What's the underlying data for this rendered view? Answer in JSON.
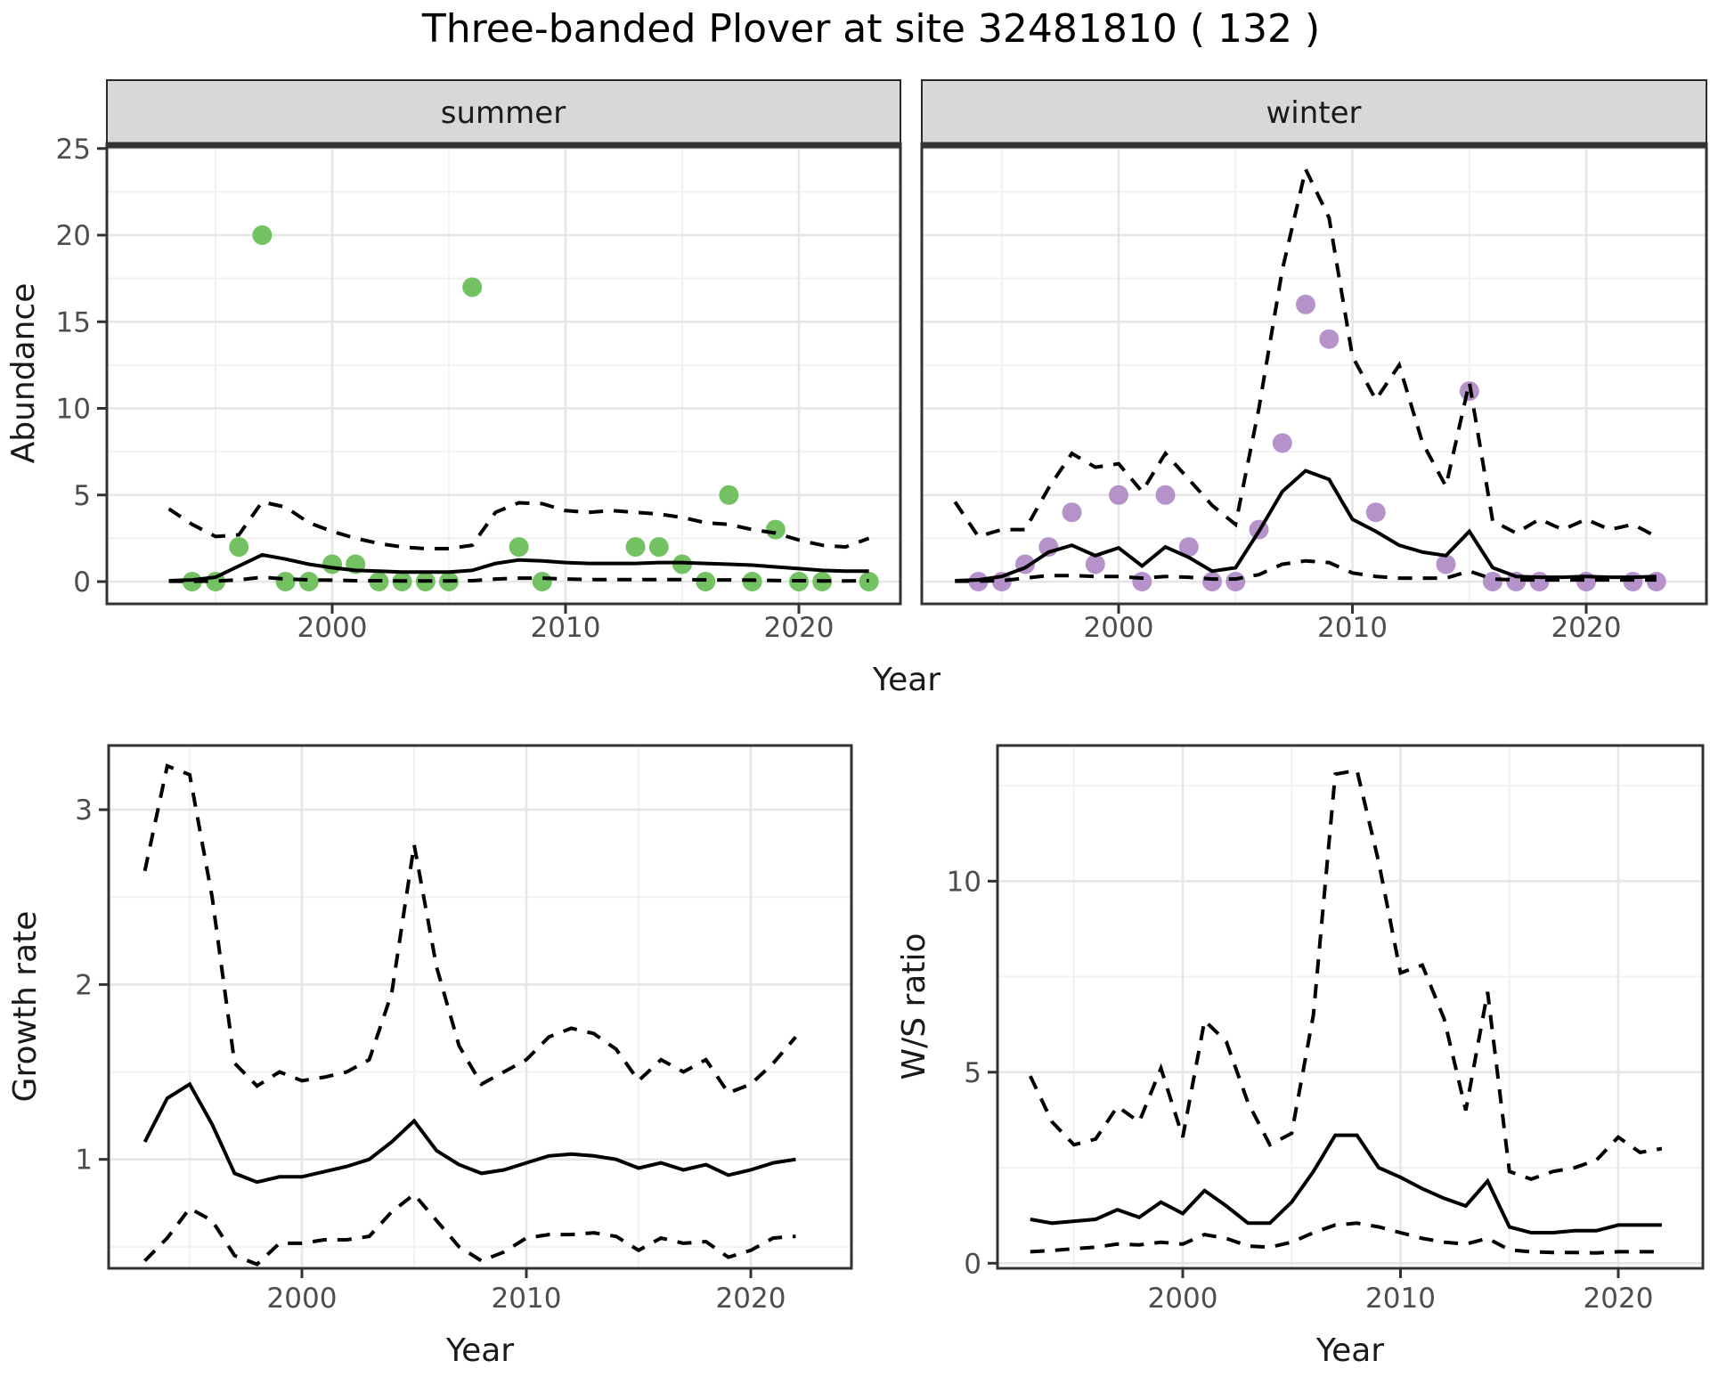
{
  "title": "Three-banded Plover at site 32481810 ( 132 )",
  "colors": {
    "summer_points": "#6cbe5b",
    "winter_points": "#b28cc8",
    "line": "#000000",
    "panel_border": "#333333",
    "strip_bg": "#d8d8d8",
    "grid_major": "#e6e6e6",
    "grid_minor": "#f2f2f2",
    "tick_label": "#4d4d4d"
  },
  "chart_data": [
    {
      "type": "scatter+line",
      "facet_label": "summer",
      "xlabel": "Year",
      "ylabel": "Abundance",
      "xticks": [
        2000,
        2010,
        2020
      ],
      "xminor": [
        1995,
        2005,
        2015
      ],
      "yticks": [
        0,
        5,
        10,
        15,
        20,
        25
      ],
      "yminor": [
        2.5,
        7.5,
        12.5,
        17.5,
        22.5
      ],
      "xlim": [
        1990.3,
        2024.4
      ],
      "ylim": [
        -1.3,
        25.3
      ],
      "grid": true,
      "legend_position": "none",
      "point_color": "#6cbe5b",
      "points": {
        "years": [
          1994,
          1995,
          1996,
          1997,
          1998,
          1999,
          2000,
          2001,
          2002,
          2003,
          2004,
          2005,
          2006,
          2008,
          2009,
          2013,
          2014,
          2015,
          2016,
          2017,
          2018,
          2019,
          2020,
          2021,
          2023
        ],
        "values": [
          0,
          0,
          2,
          20,
          0,
          0,
          1,
          1,
          0,
          0,
          0,
          0,
          17,
          2,
          0,
          2,
          2,
          1,
          0,
          5,
          0,
          3,
          0,
          0,
          0
        ]
      },
      "series": [
        {
          "name": "median_fit",
          "style": "solid",
          "years": [
            1993,
            1994,
            1995,
            1996,
            1997,
            1998,
            1999,
            2000,
            2001,
            2002,
            2003,
            2004,
            2005,
            2006,
            2007,
            2008,
            2009,
            2010,
            2011,
            2012,
            2013,
            2014,
            2015,
            2016,
            2017,
            2018,
            2019,
            2020,
            2021,
            2022,
            2023
          ],
          "values": [
            0.05,
            0.1,
            0.25,
            0.9,
            1.55,
            1.3,
            1.0,
            0.8,
            0.65,
            0.6,
            0.55,
            0.55,
            0.55,
            0.65,
            1.05,
            1.25,
            1.2,
            1.1,
            1.05,
            1.05,
            1.05,
            1.1,
            1.1,
            1.05,
            1.0,
            0.95,
            0.85,
            0.75,
            0.65,
            0.6,
            0.6
          ]
        },
        {
          "name": "upper_ci",
          "style": "dashed",
          "years": [
            1993,
            1994,
            1995,
            1996,
            1997,
            1998,
            1999,
            2000,
            2001,
            2002,
            2003,
            2004,
            2005,
            2006,
            2007,
            2008,
            2009,
            2010,
            2011,
            2012,
            2013,
            2014,
            2015,
            2016,
            2017,
            2018,
            2019,
            2020,
            2021,
            2022,
            2023
          ],
          "values": [
            4.2,
            3.3,
            2.6,
            2.7,
            4.6,
            4.3,
            3.4,
            2.9,
            2.5,
            2.2,
            2.0,
            1.9,
            1.9,
            2.1,
            4.0,
            4.55,
            4.5,
            4.1,
            4.0,
            4.1,
            4.0,
            3.9,
            3.7,
            3.4,
            3.3,
            3.0,
            2.8,
            2.4,
            2.1,
            2.0,
            2.5
          ]
        },
        {
          "name": "lower_ci",
          "style": "dashed",
          "years": [
            1993,
            1994,
            1995,
            1996,
            1997,
            1998,
            1999,
            2000,
            2001,
            2002,
            2003,
            2004,
            2005,
            2006,
            2007,
            2008,
            2009,
            2010,
            2011,
            2012,
            2013,
            2014,
            2015,
            2016,
            2017,
            2018,
            2019,
            2020,
            2021,
            2022,
            2023
          ],
          "values": [
            0.02,
            0.02,
            0.03,
            0.1,
            0.25,
            0.15,
            0.1,
            0.08,
            0.05,
            0.05,
            0.04,
            0.04,
            0.04,
            0.05,
            0.15,
            0.2,
            0.2,
            0.15,
            0.12,
            0.12,
            0.12,
            0.12,
            0.12,
            0.1,
            0.1,
            0.08,
            0.06,
            0.05,
            0.04,
            0.04,
            0.05
          ]
        }
      ]
    },
    {
      "type": "scatter+line",
      "facet_label": "winter",
      "xlabel": "Year",
      "ylabel": "Abundance",
      "xticks": [
        2000,
        2010,
        2020
      ],
      "xminor": [
        1995,
        2005,
        2015
      ],
      "yticks": [
        0,
        5,
        10,
        15,
        20,
        25
      ],
      "yminor": [
        2.5,
        7.5,
        12.5,
        17.5,
        22.5
      ],
      "xlim": [
        1991.3,
        2025.2
      ],
      "ylim": [
        -1.3,
        25.3
      ],
      "grid": true,
      "legend_position": "none",
      "point_color": "#b28cc8",
      "points": {
        "years": [
          1994,
          1995,
          1996,
          1997,
          1998,
          1999,
          2000,
          2001,
          2002,
          2003,
          2004,
          2005,
          2006,
          2007,
          2008,
          2009,
          2011,
          2014,
          2015,
          2016,
          2017,
          2018,
          2020,
          2022,
          2023
        ],
        "values": [
          0,
          0,
          1,
          2,
          4,
          1,
          5,
          0,
          5,
          2,
          0,
          0,
          3,
          8,
          16,
          14,
          4,
          1,
          11,
          0,
          0,
          0,
          0,
          0,
          0
        ]
      },
      "series": [
        {
          "name": "median_fit",
          "style": "solid",
          "years": [
            1993,
            1994,
            1995,
            1996,
            1997,
            1998,
            1999,
            2000,
            2001,
            2002,
            2003,
            2004,
            2005,
            2006,
            2007,
            2008,
            2009,
            2010,
            2011,
            2012,
            2013,
            2014,
            2015,
            2016,
            2017,
            2018,
            2019,
            2020,
            2021,
            2022,
            2023
          ],
          "values": [
            0.05,
            0.1,
            0.3,
            0.8,
            1.7,
            2.1,
            1.5,
            1.95,
            0.9,
            2.0,
            1.4,
            0.6,
            0.8,
            2.9,
            5.2,
            6.4,
            5.9,
            3.6,
            2.9,
            2.1,
            1.7,
            1.5,
            2.9,
            0.8,
            0.3,
            0.25,
            0.25,
            0.3,
            0.25,
            0.25,
            0.3
          ]
        },
        {
          "name": "upper_ci",
          "style": "dashed",
          "years": [
            1993,
            1994,
            1995,
            1996,
            1997,
            1998,
            1999,
            2000,
            2001,
            2002,
            2003,
            2004,
            2005,
            2006,
            2007,
            2008,
            2009,
            2010,
            2011,
            2012,
            2013,
            2014,
            2015,
            2016,
            2017,
            2018,
            2019,
            2020,
            2021,
            2022,
            2023
          ],
          "values": [
            4.6,
            2.6,
            3.0,
            3.0,
            5.4,
            7.4,
            6.6,
            6.8,
            5.2,
            7.4,
            5.9,
            4.4,
            3.3,
            10.0,
            18.0,
            23.8,
            21.0,
            13.0,
            10.5,
            12.5,
            8.0,
            5.5,
            11.5,
            3.5,
            2.8,
            3.6,
            3.0,
            3.6,
            3.0,
            3.3,
            2.6
          ]
        },
        {
          "name": "lower_ci",
          "style": "dashed",
          "years": [
            1993,
            1994,
            1995,
            1996,
            1997,
            1998,
            1999,
            2000,
            2001,
            2002,
            2003,
            2004,
            2005,
            2006,
            2007,
            2008,
            2009,
            2010,
            2011,
            2012,
            2013,
            2014,
            2015,
            2016,
            2017,
            2018,
            2019,
            2020,
            2021,
            2022,
            2023
          ],
          "values": [
            0.02,
            0.03,
            0.05,
            0.2,
            0.35,
            0.35,
            0.3,
            0.3,
            0.2,
            0.3,
            0.25,
            0.15,
            0.15,
            0.4,
            1.0,
            1.2,
            1.1,
            0.5,
            0.3,
            0.2,
            0.2,
            0.2,
            0.6,
            0.15,
            0.1,
            0.1,
            0.1,
            0.1,
            0.1,
            0.1,
            0.1
          ]
        }
      ]
    },
    {
      "type": "line",
      "facet_label": "",
      "xlabel": "Year",
      "ylabel": "Growth rate",
      "xticks": [
        2000,
        2010,
        2020
      ],
      "xminor": [
        1995,
        2005,
        2015
      ],
      "yticks": [
        1,
        2,
        3
      ],
      "yminor": [
        0.5,
        1.5,
        2.5
      ],
      "xlim": [
        1991.4,
        2024.5
      ],
      "ylim": [
        0.38,
        3.37
      ],
      "grid": true,
      "legend_position": "none",
      "series": [
        {
          "name": "median_growth_rate",
          "style": "solid",
          "years": [
            1993,
            1994,
            1995,
            1996,
            1997,
            1998,
            1999,
            2000,
            2001,
            2002,
            2003,
            2004,
            2005,
            2006,
            2007,
            2008,
            2009,
            2010,
            2011,
            2012,
            2013,
            2014,
            2015,
            2016,
            2017,
            2018,
            2019,
            2020,
            2021,
            2022
          ],
          "values": [
            1.1,
            1.35,
            1.43,
            1.2,
            0.92,
            0.87,
            0.9,
            0.9,
            0.93,
            0.96,
            1.0,
            1.1,
            1.22,
            1.05,
            0.97,
            0.92,
            0.94,
            0.98,
            1.02,
            1.03,
            1.02,
            1.0,
            0.95,
            0.98,
            0.94,
            0.97,
            0.91,
            0.94,
            0.98,
            1.0
          ]
        },
        {
          "name": "upper_ci",
          "style": "dashed",
          "years": [
            1993,
            1994,
            1995,
            1996,
            1997,
            1998,
            1999,
            2000,
            2001,
            2002,
            2003,
            2004,
            2005,
            2006,
            2007,
            2008,
            2009,
            2010,
            2011,
            2012,
            2013,
            2014,
            2015,
            2016,
            2017,
            2018,
            2019,
            2020,
            2021,
            2022
          ],
          "values": [
            2.65,
            3.25,
            3.2,
            2.5,
            1.55,
            1.42,
            1.5,
            1.45,
            1.47,
            1.5,
            1.57,
            1.95,
            2.8,
            2.1,
            1.65,
            1.43,
            1.5,
            1.57,
            1.7,
            1.75,
            1.72,
            1.63,
            1.45,
            1.57,
            1.5,
            1.57,
            1.38,
            1.43,
            1.55,
            1.7
          ]
        },
        {
          "name": "lower_ci",
          "style": "dashed",
          "years": [
            1993,
            1994,
            1995,
            1996,
            1997,
            1998,
            1999,
            2000,
            2001,
            2002,
            2003,
            2004,
            2005,
            2006,
            2007,
            2008,
            2009,
            2010,
            2011,
            2012,
            2013,
            2014,
            2015,
            2016,
            2017,
            2018,
            2019,
            2020,
            2021,
            2022
          ],
          "values": [
            0.42,
            0.55,
            0.72,
            0.65,
            0.45,
            0.4,
            0.52,
            0.52,
            0.54,
            0.54,
            0.56,
            0.7,
            0.8,
            0.65,
            0.5,
            0.42,
            0.47,
            0.55,
            0.57,
            0.57,
            0.58,
            0.56,
            0.48,
            0.55,
            0.52,
            0.53,
            0.44,
            0.48,
            0.55,
            0.56
          ]
        }
      ]
    },
    {
      "type": "line",
      "facet_label": "",
      "xlabel": "Year",
      "ylabel": "W/S ratio",
      "xticks": [
        2000,
        2010,
        2020
      ],
      "xminor": [
        1995,
        2005,
        2015
      ],
      "yticks": [
        0,
        5,
        10
      ],
      "yminor": [
        2.5,
        7.5,
        12.5
      ],
      "xlim": [
        1991.5,
        2024.3
      ],
      "ylim": [
        -0.2,
        13.55
      ],
      "grid": true,
      "legend_position": "none",
      "series": [
        {
          "name": "median_ws_ratio",
          "style": "solid",
          "years": [
            1993,
            1994,
            1995,
            1996,
            1997,
            1998,
            1999,
            2000,
            2001,
            2002,
            2003,
            2004,
            2005,
            2006,
            2007,
            2008,
            2009,
            2010,
            2011,
            2012,
            2013,
            2014,
            2015,
            2016,
            2017,
            2018,
            2019,
            2020,
            2021,
            2022
          ],
          "values": [
            1.15,
            1.05,
            1.1,
            1.15,
            1.4,
            1.2,
            1.6,
            1.3,
            1.9,
            1.5,
            1.05,
            1.05,
            1.6,
            2.4,
            3.35,
            3.35,
            2.5,
            2.25,
            1.95,
            1.7,
            1.5,
            2.15,
            0.95,
            0.8,
            0.8,
            0.85,
            0.85,
            1.0,
            1.0,
            1.0
          ]
        },
        {
          "name": "upper_ci",
          "style": "dashed",
          "years": [
            1993,
            1994,
            1995,
            1996,
            1997,
            1998,
            1999,
            2000,
            2001,
            2002,
            2003,
            2004,
            2005,
            2006,
            2007,
            2008,
            2009,
            2010,
            2011,
            2012,
            2013,
            2014,
            2015,
            2016,
            2017,
            2018,
            2019,
            2020,
            2021,
            2022
          ],
          "values": [
            4.9,
            3.7,
            3.1,
            3.25,
            4.1,
            3.7,
            5.1,
            3.3,
            6.35,
            5.8,
            4.2,
            3.1,
            3.4,
            6.5,
            12.8,
            12.9,
            10.5,
            7.6,
            7.8,
            6.4,
            4.0,
            7.1,
            2.4,
            2.2,
            2.4,
            2.5,
            2.7,
            3.3,
            2.9,
            3.0
          ]
        },
        {
          "name": "lower_ci",
          "style": "dashed",
          "years": [
            1993,
            1994,
            1995,
            1996,
            1997,
            1998,
            1999,
            2000,
            2001,
            2002,
            2003,
            2004,
            2005,
            2006,
            2007,
            2008,
            2009,
            2010,
            2011,
            2012,
            2013,
            2014,
            2015,
            2016,
            2017,
            2018,
            2019,
            2020,
            2021,
            2022
          ],
          "values": [
            0.3,
            0.33,
            0.38,
            0.42,
            0.5,
            0.48,
            0.55,
            0.5,
            0.75,
            0.65,
            0.45,
            0.42,
            0.55,
            0.8,
            1.0,
            1.05,
            0.95,
            0.8,
            0.65,
            0.55,
            0.5,
            0.65,
            0.35,
            0.3,
            0.28,
            0.28,
            0.27,
            0.3,
            0.3,
            0.3
          ]
        }
      ]
    }
  ]
}
